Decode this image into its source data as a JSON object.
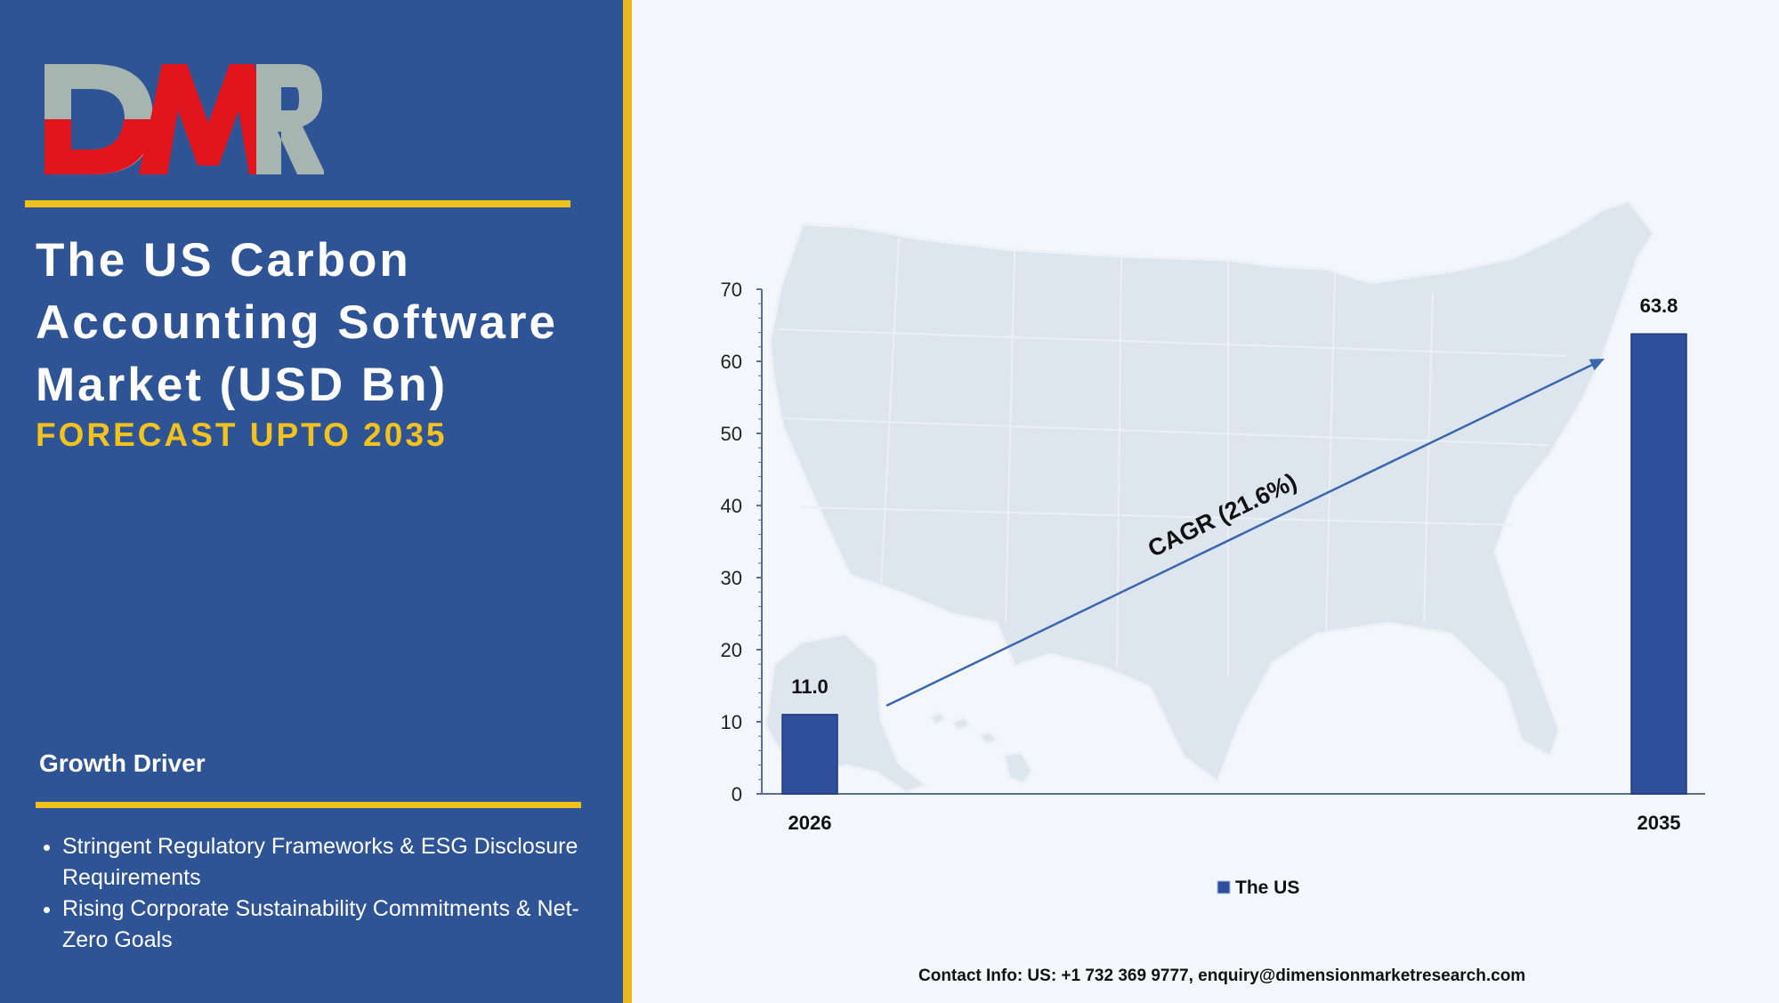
{
  "brand": {
    "logo_text": "DMR",
    "logo_icon": "dmr-logo"
  },
  "header": {
    "title": "The US Carbon Accounting Software Market (USD Bn)",
    "subtitle": "FORECAST UPTO 2035"
  },
  "drivers": {
    "heading": "Growth Driver",
    "items": [
      "Stringent Regulatory Frameworks & ESG Disclosure Requirements",
      "Rising Corporate Sustainability Commitments & Net-Zero Goals"
    ]
  },
  "chart_data": {
    "type": "bar",
    "categories": [
      "2026",
      "2035"
    ],
    "series": [
      {
        "name": "The US",
        "values": [
          11.0,
          63.8
        ]
      }
    ],
    "value_labels": [
      "11.0",
      "63.8"
    ],
    "ylim": [
      0,
      70
    ],
    "yticks": [
      0,
      10,
      20,
      30,
      40,
      50,
      60,
      70
    ],
    "annotation": "CAGR (21.6%)",
    "legend_position": "bottom",
    "background_image": "us-map",
    "colors": {
      "bar": "#2f4f9d",
      "arrow": "#3a66ad"
    }
  },
  "footer": {
    "contact": "Contact Info: US: +1 732 369 9777, enquiry@dimensionmarketresearch.com"
  }
}
